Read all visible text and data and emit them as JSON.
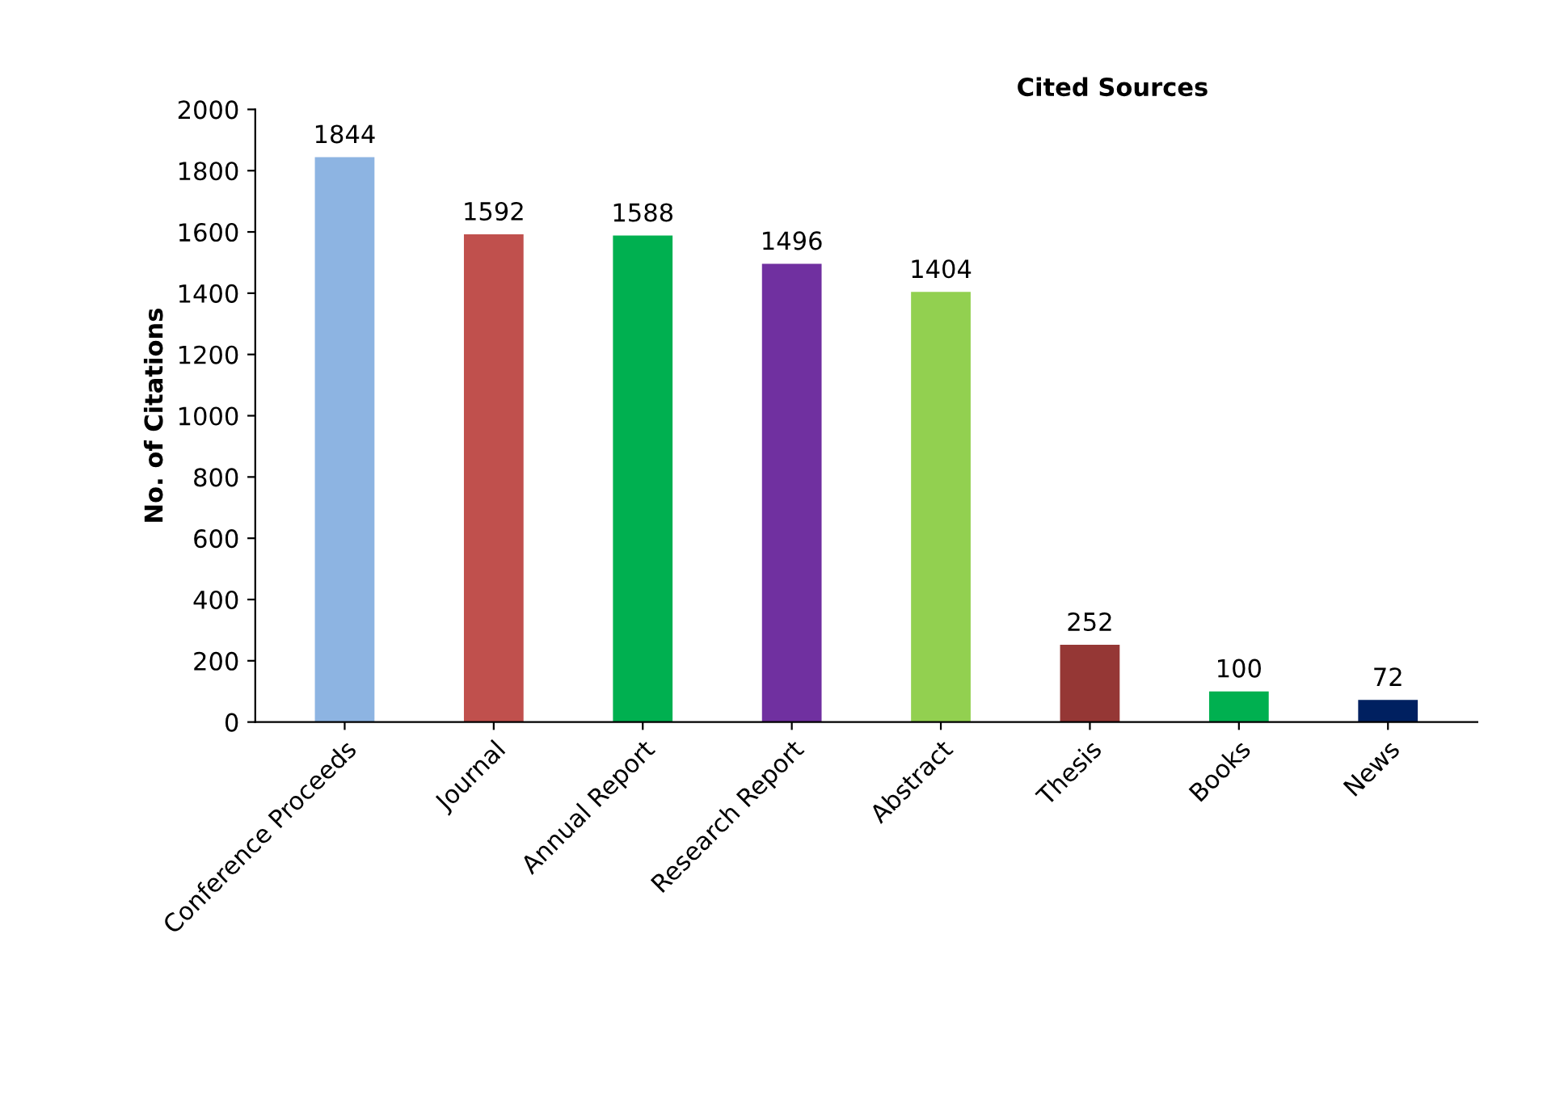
{
  "chart_data": {
    "type": "bar",
    "title": "Cited Sources",
    "ylabel": "No. of Citations",
    "categories": [
      "Conference Proceeds",
      "Journal",
      "Annual Report",
      "Research Report",
      "Abstract",
      "Thesis",
      "Books",
      "News"
    ],
    "values": [
      1844,
      1592,
      1588,
      1496,
      1404,
      252,
      100,
      72
    ],
    "colors": [
      "#8db4e2",
      "#c0504d",
      "#00b050",
      "#7030a0",
      "#92d050",
      "#953735",
      "#00b050",
      "#002060"
    ],
    "ylim": [
      0,
      2000
    ],
    "yticks": [
      0,
      200,
      400,
      600,
      800,
      1000,
      1200,
      1400,
      1600,
      1800,
      2000
    ],
    "data_labels": true,
    "grid": false,
    "legend": false
  }
}
